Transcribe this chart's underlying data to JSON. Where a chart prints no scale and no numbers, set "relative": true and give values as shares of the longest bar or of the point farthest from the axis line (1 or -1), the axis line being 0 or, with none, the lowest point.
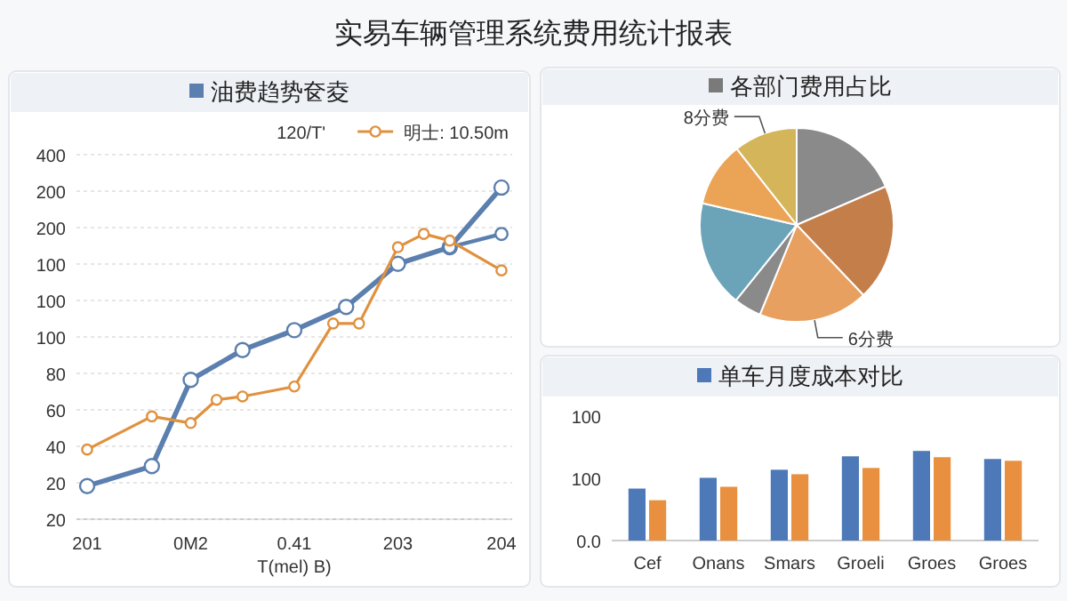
{
  "chart_data": [
    {
      "type": "line",
      "title": "实易车辆管理系统费用统计报表",
      "subtitle": "油费趋势奁夌",
      "xlabel": "T(mel) B)",
      "relative": true,
      "categories": [
        "201",
        null,
        null,
        null,
        null,
        null,
        null,
        null,
        "0M2",
        null,
        null,
        null,
        null,
        null,
        null,
        null,
        "0.41",
        null,
        null,
        null,
        null,
        null,
        null,
        null,
        "203",
        null,
        null,
        null,
        null,
        null,
        null,
        null,
        "204"
      ],
      "grid": "y",
      "legend": "top right",
      "marker": "circle",
      "annotations": [
        "120/T'",
        "20",
        "20",
        "40",
        "60",
        "80",
        "100",
        "100",
        "100",
        "200",
        "200",
        "400"
      ],
      "series": [
        {
          "color": "#5b7fae",
          "values": [
            0.1,
            null,
            null,
            null,
            null,
            0.16,
            null,
            null,
            0.42,
            null,
            null,
            null,
            0.51,
            null,
            null,
            null,
            0.57,
            null,
            null,
            null,
            0.64,
            null,
            null,
            null,
            0.77,
            null,
            null,
            null,
            0.82,
            null,
            null,
            null,
            1
          ]
        },
        {
          "color": "#5b7fae",
          "values": [
            null,
            null,
            null,
            null,
            null,
            null,
            null,
            null,
            null,
            null,
            null,
            null,
            null,
            null,
            null,
            null,
            null,
            null,
            null,
            null,
            null,
            null,
            null,
            null,
            null,
            null,
            null,
            null,
            0.82,
            null,
            null,
            null,
            0.86
          ]
        },
        {
          "name": "明士: 10.50m",
          "color": "#e0913e",
          "values": [
            0.21,
            null,
            null,
            null,
            null,
            0.31,
            null,
            null,
            0.29,
            null,
            0.36,
            null,
            0.37,
            null,
            null,
            null,
            0.4,
            null,
            null,
            0.59,
            null,
            0.59,
            null,
            null,
            0.82,
            null,
            0.86,
            null,
            0.84,
            null,
            null,
            null,
            0.75
          ]
        }
      ]
    },
    {
      "type": "pie",
      "subtitle": "各部门费用占比",
      "categories": [
        null,
        null,
        "6分费",
        null,
        null,
        null,
        "8分费"
      ],
      "values": [
        18.5,
        19.4,
        18.3,
        4.6,
        17.8,
        10.8,
        10.6
      ],
      "colors": [
        "#8a8a8a",
        "#c47e4a",
        "#e8a060",
        "#8a8a8a",
        "#6ba3b8",
        "#eba456",
        "#d4b55a"
      ]
    },
    {
      "type": "bar",
      "subtitle": "单车月度成本对比",
      "relative": true,
      "categories": [
        "Cef",
        "Onans",
        "Smars",
        "Groeli",
        "Groes",
        "Groes"
      ],
      "annotations": [
        "0.0",
        "100",
        "100"
      ],
      "series": [
        {
          "color": "#4e79b8",
          "values": [
            0.58,
            0.7,
            0.79,
            0.94,
            1,
            0.91
          ]
        },
        {
          "color": "#e8903f",
          "values": [
            0.45,
            0.6,
            0.74,
            0.81,
            0.93,
            0.89
          ]
        }
      ]
    }
  ]
}
